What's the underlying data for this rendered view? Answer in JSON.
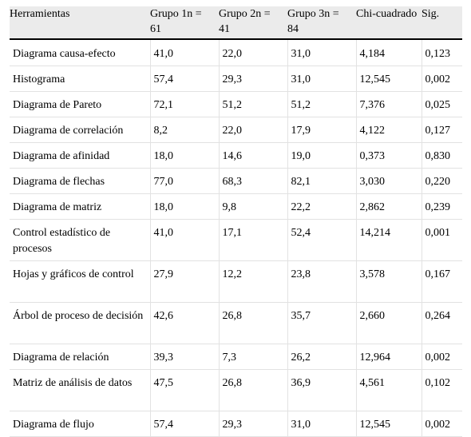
{
  "table": {
    "headers": [
      "Herramientas",
      "Grupo 1n = 61",
      "Grupo 2n = 41",
      "Grupo 3n = 84",
      "Chi-cuadrado",
      "Sig."
    ],
    "rows": [
      [
        "Diagrama causa-efecto",
        "41,0",
        "22,0",
        "31,0",
        "4,184",
        "0,123"
      ],
      [
        "Histograma",
        "57,4",
        "29,3",
        "31,0",
        "12,545",
        "0,002"
      ],
      [
        "Diagrama de Pareto",
        "72,1",
        "51,2",
        "51,2",
        "7,376",
        "0,025"
      ],
      [
        "Diagrama de correlación",
        "8,2",
        "22,0",
        "17,9",
        "4,122",
        "0,127"
      ],
      [
        "Diagrama de afinidad",
        "18,0",
        "14,6",
        "19,0",
        "0,373",
        "0,830"
      ],
      [
        "Diagrama de flechas",
        "77,0",
        "68,3",
        "82,1",
        "3,030",
        "0,220"
      ],
      [
        "Diagrama de matriz",
        "18,0",
        "9,8",
        "22,2",
        "2,862",
        "0,239"
      ],
      [
        "Control estadístico de procesos",
        "41,0",
        "17,1",
        "52,4",
        "14,214",
        "0,001"
      ],
      [
        "Hojas y gráficos de control",
        "27,9",
        "12,2",
        "23,8",
        "3,578",
        "0,167"
      ],
      [
        "Árbol de proceso de decisión",
        "42,6",
        "26,8",
        "35,7",
        "2,660",
        "0,264"
      ],
      [
        "Diagrama de relación",
        "39,3",
        "7,3",
        "26,2",
        "12,964",
        "0,002"
      ],
      [
        "Matriz de análisis de datos",
        "47,5",
        "26,8",
        "36,9",
        "4,561",
        "0,102"
      ],
      [
        "Diagrama de flujo",
        "57,4",
        "29,3",
        "31,0",
        "12,545",
        "0,002"
      ]
    ]
  }
}
